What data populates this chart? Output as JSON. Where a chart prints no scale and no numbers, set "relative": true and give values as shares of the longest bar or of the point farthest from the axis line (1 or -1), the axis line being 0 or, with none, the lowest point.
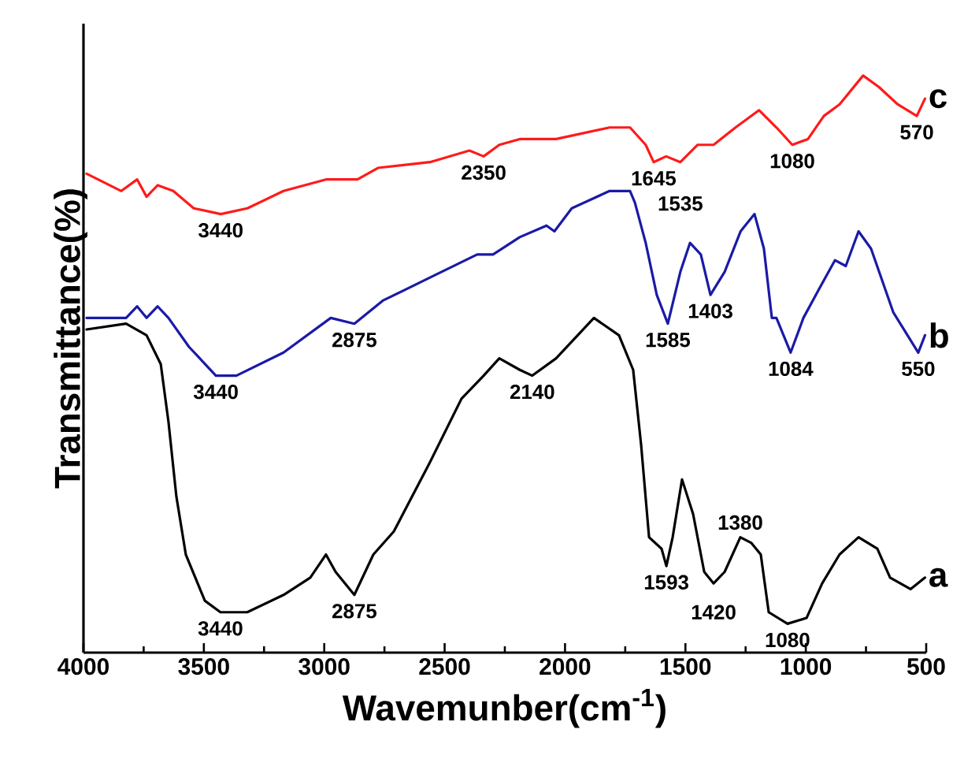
{
  "chart_data": {
    "type": "line",
    "relative": true,
    "xlabel": "Wavemunber(cm$^{-1}$)",
    "ylabel": "Transmittance(%)",
    "xlim": [
      4000,
      500
    ],
    "xticks": [
      4000,
      3500,
      3000,
      2500,
      2000,
      1500,
      1000,
      500
    ],
    "line_style": "solid",
    "series": [
      {
        "name": "a",
        "color": "#000000",
        "x": [
          3987,
          3823,
          3738,
          3679,
          3647,
          3614,
          3575,
          3496,
          3431,
          3320,
          3169,
          3058,
          2993,
          2953,
          2875,
          2796,
          2711,
          2561,
          2430,
          2338,
          2273,
          2188,
          2136,
          2037,
          1880,
          1776,
          1717,
          1684,
          1651,
          1599,
          1579,
          1553,
          1514,
          1468,
          1422,
          1383,
          1337,
          1272,
          1226,
          1187,
          1154,
          1076,
          997,
          932,
          860,
          781,
          703,
          650,
          565,
          505
        ],
        "values": [
          0.56,
          0.57,
          0.55,
          0.5,
          0.4,
          0.27,
          0.17,
          0.09,
          0.07,
          0.07,
          0.1,
          0.13,
          0.17,
          0.14,
          0.1,
          0.17,
          0.21,
          0.33,
          0.44,
          0.48,
          0.51,
          0.49,
          0.48,
          0.51,
          0.58,
          0.55,
          0.49,
          0.36,
          0.2,
          0.18,
          0.15,
          0.2,
          0.3,
          0.24,
          0.14,
          0.12,
          0.14,
          0.2,
          0.19,
          0.17,
          0.07,
          0.05,
          0.06,
          0.12,
          0.17,
          0.2,
          0.18,
          0.13,
          0.11,
          0.13
        ]
      },
      {
        "name": "b",
        "color": "#1a1aa6",
        "x": [
          3987,
          3823,
          3777,
          3738,
          3692,
          3647,
          3562,
          3450,
          3365,
          3169,
          2973,
          2875,
          2757,
          2561,
          2365,
          2299,
          2188,
          2077,
          2044,
          1972,
          1815,
          1730,
          1710,
          1665,
          1619,
          1573,
          1521,
          1481,
          1436,
          1396,
          1337,
          1271,
          1213,
          1174,
          1141,
          1122,
          1063,
          1010,
          945,
          879,
          834,
          781,
          729,
          637,
          533,
          505
        ],
        "values": [
          0.58,
          0.58,
          0.6,
          0.58,
          0.6,
          0.58,
          0.53,
          0.48,
          0.48,
          0.52,
          0.58,
          0.57,
          0.61,
          0.65,
          0.69,
          0.69,
          0.72,
          0.74,
          0.73,
          0.77,
          0.8,
          0.8,
          0.78,
          0.71,
          0.62,
          0.57,
          0.66,
          0.71,
          0.69,
          0.62,
          0.66,
          0.73,
          0.76,
          0.7,
          0.58,
          0.58,
          0.52,
          0.58,
          0.63,
          0.68,
          0.67,
          0.73,
          0.7,
          0.59,
          0.52,
          0.55
        ]
      },
      {
        "name": "c",
        "color": "#ff1a1a",
        "x": [
          3987,
          3843,
          3777,
          3738,
          3692,
          3627,
          3542,
          3430,
          3319,
          3169,
          2993,
          2862,
          2777,
          2561,
          2397,
          2338,
          2273,
          2188,
          2037,
          1815,
          1730,
          1665,
          1632,
          1580,
          1521,
          1449,
          1383,
          1292,
          1194,
          1122,
          1056,
          991,
          925,
          860,
          762,
          696,
          618,
          539,
          505
        ],
        "values": [
          0.83,
          0.8,
          0.82,
          0.79,
          0.81,
          0.8,
          0.77,
          0.76,
          0.77,
          0.8,
          0.82,
          0.82,
          0.84,
          0.85,
          0.87,
          0.86,
          0.88,
          0.89,
          0.89,
          0.91,
          0.91,
          0.88,
          0.85,
          0.86,
          0.85,
          0.88,
          0.88,
          0.91,
          0.94,
          0.91,
          0.88,
          0.89,
          0.93,
          0.95,
          1.0,
          0.98,
          0.95,
          0.93,
          0.96
        ]
      }
    ],
    "annotations": [
      {
        "text": "3440",
        "x": 3430,
        "y": 0.76
      },
      {
        "text": "2350",
        "x": 2338,
        "y": 0.86
      },
      {
        "text": "1645",
        "x": 1632,
        "y": 0.85
      },
      {
        "text": "1535",
        "x": 1521,
        "y": 0.85
      },
      {
        "text": "1080",
        "x": 1056,
        "y": 0.88
      },
      {
        "text": "570",
        "x": 539,
        "y": 0.93
      },
      {
        "text": "3440",
        "x": 3450,
        "y": 0.48
      },
      {
        "text": "2875",
        "x": 2875,
        "y": 0.57
      },
      {
        "text": "1585",
        "x": 1573,
        "y": 0.57
      },
      {
        "text": "1403",
        "x": 1396,
        "y": 0.62
      },
      {
        "text": "1084",
        "x": 1063,
        "y": 0.52
      },
      {
        "text": "550",
        "x": 533,
        "y": 0.52
      },
      {
        "text": "3440",
        "x": 3431,
        "y": 0.07
      },
      {
        "text": "2875",
        "x": 2875,
        "y": 0.1
      },
      {
        "text": "2140",
        "x": 2136,
        "y": 0.48
      },
      {
        "text": "1593",
        "x": 1579,
        "y": 0.15
      },
      {
        "text": "1420",
        "x": 1383,
        "y": 0.12
      },
      {
        "text": "1380",
        "x": 1272,
        "y": 0.2
      },
      {
        "text": "1080",
        "x": 1076,
        "y": 0.05
      }
    ]
  }
}
